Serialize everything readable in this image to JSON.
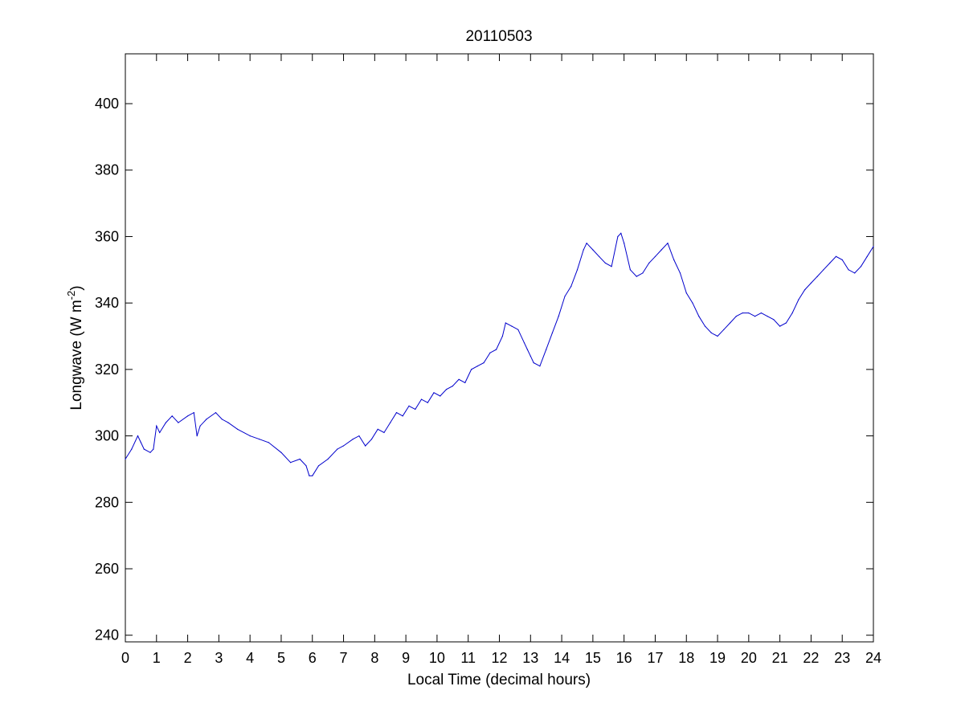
{
  "chart_data": {
    "type": "line",
    "title": "20110503",
    "xlabel": "Local Time (decimal hours)",
    "ylabel": {
      "prefix": "Longwave (W m",
      "superscript": "-2",
      "suffix": ")"
    },
    "xlim": [
      0,
      24
    ],
    "ylim": [
      238,
      415
    ],
    "xticks": [
      0,
      1,
      2,
      3,
      4,
      5,
      6,
      7,
      8,
      9,
      10,
      11,
      12,
      13,
      14,
      15,
      16,
      17,
      18,
      19,
      20,
      21,
      22,
      23,
      24
    ],
    "yticks": [
      240,
      260,
      280,
      300,
      320,
      340,
      360,
      380,
      400
    ],
    "grid": false,
    "line_color": "#0000cc",
    "series": [
      {
        "x": [
          0.0,
          0.2,
          0.4,
          0.5,
          0.6,
          0.8,
          0.9,
          1.0,
          1.1,
          1.3,
          1.5,
          1.7,
          2.0,
          2.2,
          2.3,
          2.4,
          2.6,
          2.9,
          3.1,
          3.3,
          3.6,
          4.0,
          4.3,
          4.6,
          5.0,
          5.3,
          5.6,
          5.8,
          5.9,
          6.0,
          6.2,
          6.5,
          6.8,
          7.0,
          7.3,
          7.5,
          7.7,
          7.9,
          8.1,
          8.3,
          8.5,
          8.7,
          8.9,
          9.1,
          9.3,
          9.5,
          9.7,
          9.9,
          10.1,
          10.3,
          10.5,
          10.7,
          10.9,
          11.1,
          11.3,
          11.5,
          11.7,
          11.9,
          12.1,
          12.2,
          12.4,
          12.6,
          12.8,
          12.9,
          13.0,
          13.1,
          13.3,
          13.5,
          13.7,
          13.9,
          14.1,
          14.3,
          14.5,
          14.7,
          14.8,
          15.0,
          15.2,
          15.4,
          15.6,
          15.8,
          15.9,
          16.0,
          16.2,
          16.4,
          16.6,
          16.8,
          17.0,
          17.2,
          17.4,
          17.6,
          17.8,
          18.0,
          18.2,
          18.4,
          18.6,
          18.8,
          19.0,
          19.2,
          19.4,
          19.6,
          19.8,
          20.0,
          20.2,
          20.4,
          20.6,
          20.8,
          21.0,
          21.2,
          21.4,
          21.6,
          21.8,
          22.0,
          22.2,
          22.4,
          22.6,
          22.8,
          23.0,
          23.2,
          23.4,
          23.6,
          23.8,
          24.0
        ],
        "y": [
          293.0,
          296.0,
          300.0,
          298.0,
          296.0,
          295.0,
          296.0,
          303.0,
          301.0,
          304.0,
          306.0,
          304.0,
          306.0,
          307.0,
          300.0,
          303.0,
          305.0,
          307.0,
          305.0,
          304.0,
          302.0,
          300.0,
          299.0,
          298.0,
          295.0,
          292.0,
          293.0,
          291.0,
          288.0,
          288.0,
          291.0,
          293.0,
          296.0,
          297.0,
          299.0,
          300.0,
          297.0,
          299.0,
          302.0,
          301.0,
          304.0,
          307.0,
          306.0,
          309.0,
          308.0,
          311.0,
          310.0,
          313.0,
          312.0,
          314.0,
          315.0,
          317.0,
          316.0,
          320.0,
          321.0,
          322.0,
          325.0,
          326.0,
          330.0,
          334.0,
          333.0,
          332.0,
          328.0,
          326.0,
          324.0,
          322.0,
          321.0,
          326.0,
          331.0,
          336.0,
          342.0,
          345.0,
          350.0,
          356.0,
          358.0,
          356.0,
          354.0,
          352.0,
          351.0,
          360.0,
          361.0,
          358.0,
          350.0,
          348.0,
          349.0,
          352.0,
          354.0,
          356.0,
          358.0,
          353.0,
          349.0,
          343.0,
          340.0,
          336.0,
          333.0,
          331.0,
          330.0,
          332.0,
          334.0,
          336.0,
          337.0,
          337.0,
          336.0,
          337.0,
          336.0,
          335.0,
          333.0,
          334.0,
          337.0,
          341.0,
          344.0,
          346.0,
          348.0,
          350.0,
          352.0,
          354.0,
          353.0,
          350.0,
          349.0,
          351.0,
          354.0,
          357.0
        ]
      }
    ]
  }
}
